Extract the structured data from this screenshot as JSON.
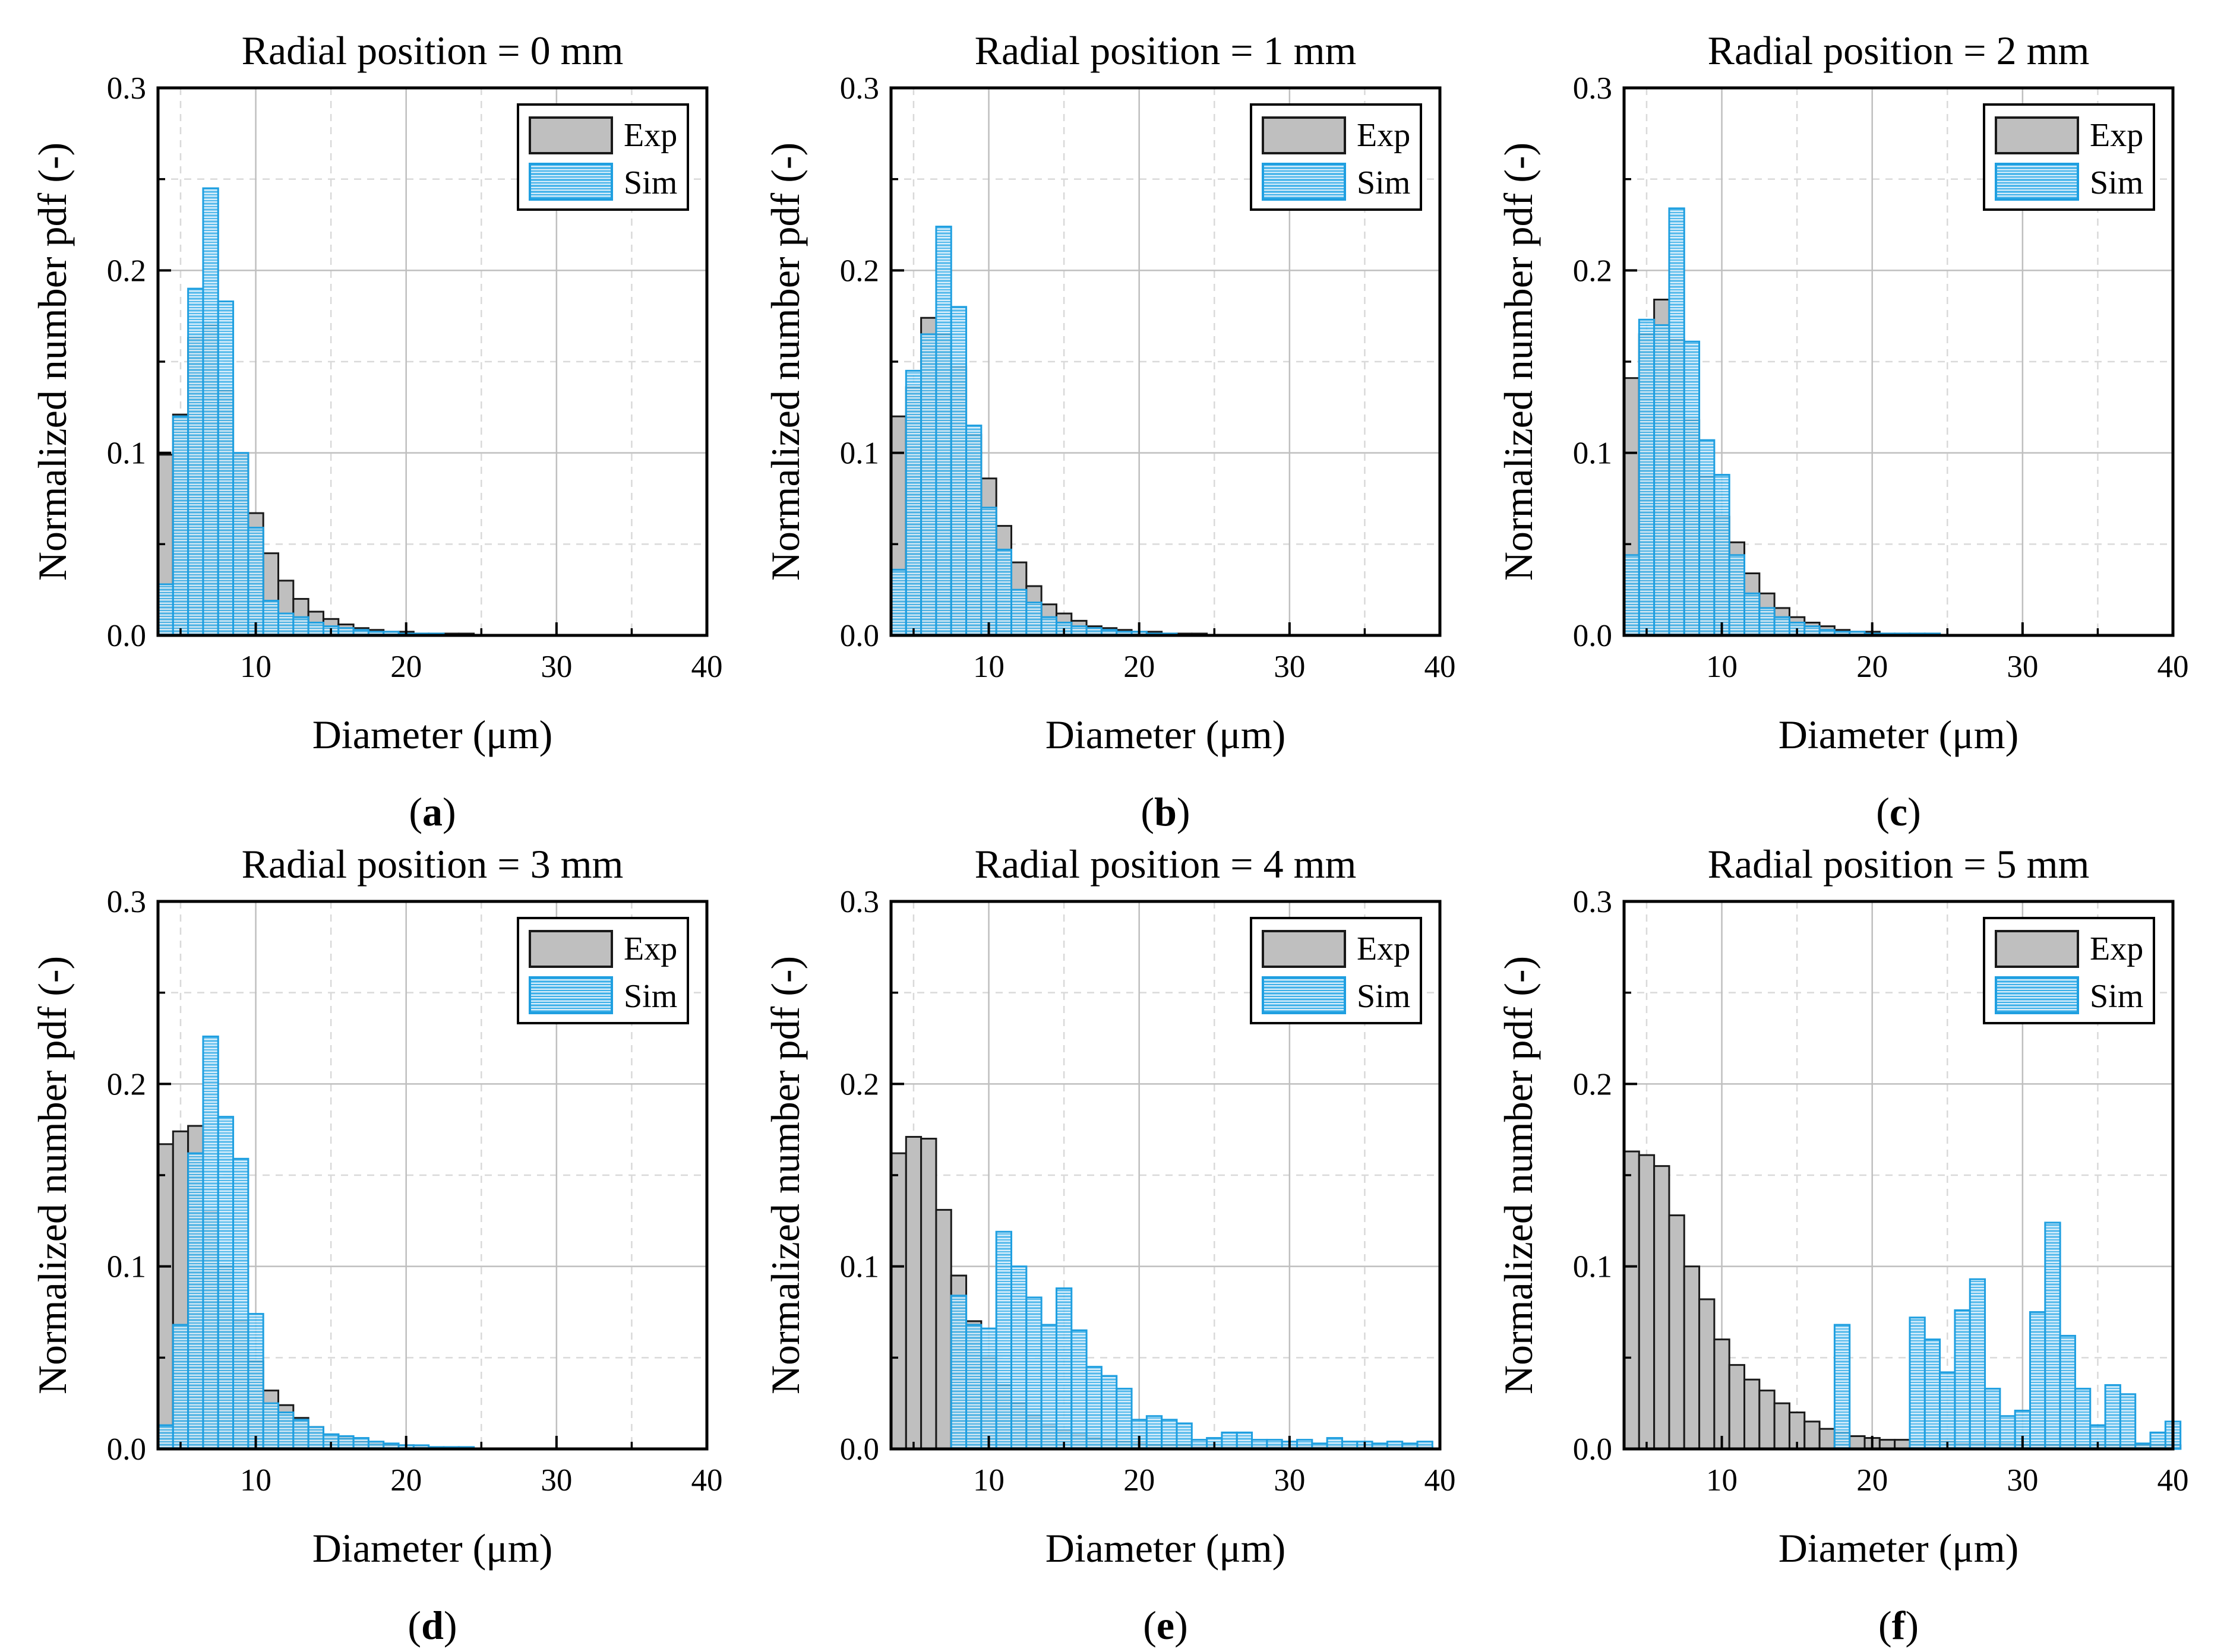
{
  "figure": {
    "colors": {
      "exp_fill": "#bfbfbf",
      "exp_edge": "#1a1a1a",
      "sim_fill": "#d4ecfa",
      "sim_edge": "#1f9fe0",
      "sim_hatch": "#39aee8",
      "grid_major": "#bfbfbf",
      "grid_minor": "#d9d9d9",
      "axis": "#000000"
    }
  },
  "chart_data": [
    {
      "type": "bar",
      "panel_label": "a",
      "title": "Radial position = 0 mm",
      "xlabel": "Diameter (μm)",
      "ylabel": "Normalized number pdf (-)",
      "xlim": [
        3.5,
        40
      ],
      "ylim": [
        0,
        0.3
      ],
      "xticks": [
        10,
        20,
        30,
        40
      ],
      "yticks": [
        0.0,
        0.1,
        0.2,
        0.3
      ],
      "ytick_labels": [
        "0.0",
        "0.1",
        "0.2",
        "0.3"
      ],
      "bin_width": 1,
      "bin_start": 3.5,
      "legend": [
        "Exp",
        "Sim"
      ],
      "legend_position": "top-right",
      "series": [
        {
          "name": "Exp",
          "values": [
            0.099,
            0.121,
            0.163,
            0.17,
            0.134,
            0.099,
            0.067,
            0.045,
            0.03,
            0.02,
            0.013,
            0.009,
            0.006,
            0.004,
            0.003,
            0.002,
            0.002,
            0.001,
            0.001,
            0.001,
            0.001
          ]
        },
        {
          "name": "Sim",
          "values": [
            0.028,
            0.12,
            0.19,
            0.245,
            0.183,
            0.1,
            0.059,
            0.019,
            0.012,
            0.01,
            0.007,
            0.005,
            0.004,
            0.003,
            0.002,
            0.002,
            0.001,
            0.001,
            0.001
          ]
        }
      ]
    },
    {
      "type": "bar",
      "panel_label": "b",
      "title": "Radial position = 1 mm",
      "xlabel": "Diameter (μm)",
      "ylabel": "Normalized number pdf (-)",
      "xlim": [
        3.5,
        40
      ],
      "ylim": [
        0,
        0.3
      ],
      "xticks": [
        10,
        20,
        30,
        40
      ],
      "yticks": [
        0.0,
        0.1,
        0.2,
        0.3
      ],
      "ytick_labels": [
        "0.0",
        "0.1",
        "0.2",
        "0.3"
      ],
      "bin_width": 1,
      "bin_start": 3.5,
      "legend": [
        "Exp",
        "Sim"
      ],
      "legend_position": "top-right",
      "series": [
        {
          "name": "Exp",
          "values": [
            0.12,
            0.136,
            0.174,
            0.165,
            0.147,
            0.11,
            0.086,
            0.06,
            0.04,
            0.027,
            0.017,
            0.012,
            0.008,
            0.005,
            0.004,
            0.003,
            0.002,
            0.002,
            0.001,
            0.001,
            0.001
          ]
        },
        {
          "name": "Sim",
          "values": [
            0.036,
            0.145,
            0.165,
            0.224,
            0.18,
            0.115,
            0.07,
            0.047,
            0.025,
            0.018,
            0.01,
            0.007,
            0.005,
            0.004,
            0.003,
            0.002,
            0.002,
            0.001,
            0.001
          ]
        }
      ]
    },
    {
      "type": "bar",
      "panel_label": "c",
      "title": "Radial position = 2 mm",
      "xlabel": "Diameter (μm)",
      "ylabel": "Normalized number pdf (-)",
      "xlim": [
        3.5,
        40
      ],
      "ylim": [
        0,
        0.3
      ],
      "xticks": [
        10,
        20,
        30,
        40
      ],
      "yticks": [
        0.0,
        0.1,
        0.2,
        0.3
      ],
      "ytick_labels": [
        "0.0",
        "0.1",
        "0.2",
        "0.3"
      ],
      "bin_width": 1,
      "bin_start": 3.5,
      "legend": [
        "Exp",
        "Sim"
      ],
      "legend_position": "top-right",
      "series": [
        {
          "name": "Exp",
          "values": [
            0.141,
            0.165,
            0.184,
            0.162,
            0.118,
            0.087,
            0.065,
            0.051,
            0.034,
            0.023,
            0.015,
            0.01,
            0.007,
            0.005,
            0.003,
            0.002,
            0.002,
            0.001,
            0.001,
            0.001,
            0.001
          ]
        },
        {
          "name": "Sim",
          "values": [
            0.044,
            0.173,
            0.17,
            0.234,
            0.161,
            0.107,
            0.088,
            0.044,
            0.023,
            0.015,
            0.01,
            0.007,
            0.005,
            0.003,
            0.002,
            0.002,
            0.001,
            0.001,
            0.001,
            0.001,
            0.001
          ]
        }
      ]
    },
    {
      "type": "bar",
      "panel_label": "d",
      "title": "Radial position = 3 mm",
      "xlabel": "Diameter (μm)",
      "ylabel": "Normalized number pdf (-)",
      "xlim": [
        3.5,
        40
      ],
      "ylim": [
        0,
        0.3
      ],
      "xticks": [
        10,
        20,
        30,
        40
      ],
      "yticks": [
        0.0,
        0.1,
        0.2,
        0.3
      ],
      "ytick_labels": [
        "0.0",
        "0.1",
        "0.2",
        "0.3"
      ],
      "bin_width": 1,
      "bin_start": 3.5,
      "legend": [
        "Exp",
        "Sim"
      ],
      "legend_position": "top-right",
      "series": [
        {
          "name": "Exp",
          "values": [
            0.167,
            0.174,
            0.177,
            0.13,
            0.1,
            0.07,
            0.048,
            0.032,
            0.024,
            0.017,
            0.012,
            0.008,
            0.006,
            0.004,
            0.003,
            0.002,
            0.002,
            0.001,
            0.001,
            0.001,
            0.001
          ]
        },
        {
          "name": "Sim",
          "values": [
            0.013,
            0.068,
            0.162,
            0.226,
            0.182,
            0.159,
            0.074,
            0.025,
            0.02,
            0.016,
            0.012,
            0.008,
            0.007,
            0.006,
            0.004,
            0.003,
            0.002,
            0.002,
            0.001,
            0.001,
            0.001
          ]
        }
      ]
    },
    {
      "type": "bar",
      "panel_label": "e",
      "title": "Radial position = 4 mm",
      "xlabel": "Diameter (μm)",
      "ylabel": "Normalized number pdf (-)",
      "xlim": [
        3.5,
        40
      ],
      "ylim": [
        0,
        0.3
      ],
      "xticks": [
        10,
        20,
        30,
        40
      ],
      "yticks": [
        0.0,
        0.1,
        0.2,
        0.3
      ],
      "ytick_labels": [
        "0.0",
        "0.1",
        "0.2",
        "0.3"
      ],
      "bin_width": 1,
      "bin_start": 3.5,
      "legend": [
        "Exp",
        "Sim"
      ],
      "legend_position": "top-right",
      "series": [
        {
          "name": "Exp",
          "values": [
            0.162,
            0.171,
            0.17,
            0.131,
            0.095,
            0.07,
            0.05,
            0.035,
            0.025,
            0.018,
            0.013,
            0.01,
            0.008,
            0.006,
            0.005,
            0.004,
            0.003,
            0.002,
            0.002,
            0.002,
            0.001,
            0.001,
            0.001,
            0.001,
            0.001,
            0.001,
            0.001,
            0.001,
            0.001,
            0.001,
            0.001,
            0.001,
            0.001,
            0.001,
            0.001,
            0.001
          ]
        },
        {
          "name": "Sim",
          "values": [
            0,
            0,
            0,
            0,
            0.084,
            0.068,
            0.066,
            0.119,
            0.1,
            0.083,
            0.068,
            0.088,
            0.065,
            0.045,
            0.04,
            0.033,
            0.016,
            0.018,
            0.016,
            0.014,
            0.005,
            0.006,
            0.009,
            0.009,
            0.005,
            0.005,
            0.004,
            0.005,
            0.003,
            0.006,
            0.004,
            0.004,
            0.003,
            0.004,
            0.003,
            0.004
          ]
        }
      ]
    },
    {
      "type": "bar",
      "panel_label": "f",
      "title": "Radial position = 5 mm",
      "xlabel": "Diameter (μm)",
      "ylabel": "Normalized number pdf (-)",
      "xlim": [
        3.5,
        40
      ],
      "ylim": [
        0,
        0.3
      ],
      "xticks": [
        10,
        20,
        30,
        40
      ],
      "yticks": [
        0.0,
        0.1,
        0.2,
        0.3
      ],
      "ytick_labels": [
        "0.0",
        "0.1",
        "0.2",
        "0.3"
      ],
      "bin_width": 1,
      "bin_start": 3.5,
      "legend": [
        "Exp",
        "Sim"
      ],
      "legend_position": "top-right",
      "series": [
        {
          "name": "Exp",
          "values": [
            0.163,
            0.161,
            0.155,
            0.128,
            0.1,
            0.082,
            0.06,
            0.046,
            0.038,
            0.032,
            0.025,
            0.02,
            0.015,
            0.011,
            0.009,
            0.007,
            0.006,
            0.005,
            0.005,
            0.004,
            0.004,
            0.004,
            0.003,
            0.003,
            0.003,
            0.003,
            0.002,
            0.002,
            0.002,
            0.002,
            0.002,
            0.002,
            0.002,
            0.002,
            0.002,
            0.002,
            0.002
          ]
        },
        {
          "name": "Sim",
          "values": [
            0,
            0,
            0,
            0,
            0,
            0,
            0,
            0,
            0,
            0,
            0,
            0,
            0,
            0,
            0.068,
            0,
            0,
            0,
            0,
            0.072,
            0.06,
            0.042,
            0.076,
            0.093,
            0.033,
            0.018,
            0.021,
            0.075,
            0.124,
            0.062,
            0.033,
            0.013,
            0.035,
            0.03,
            0.003,
            0.009,
            0.015
          ]
        }
      ]
    }
  ]
}
